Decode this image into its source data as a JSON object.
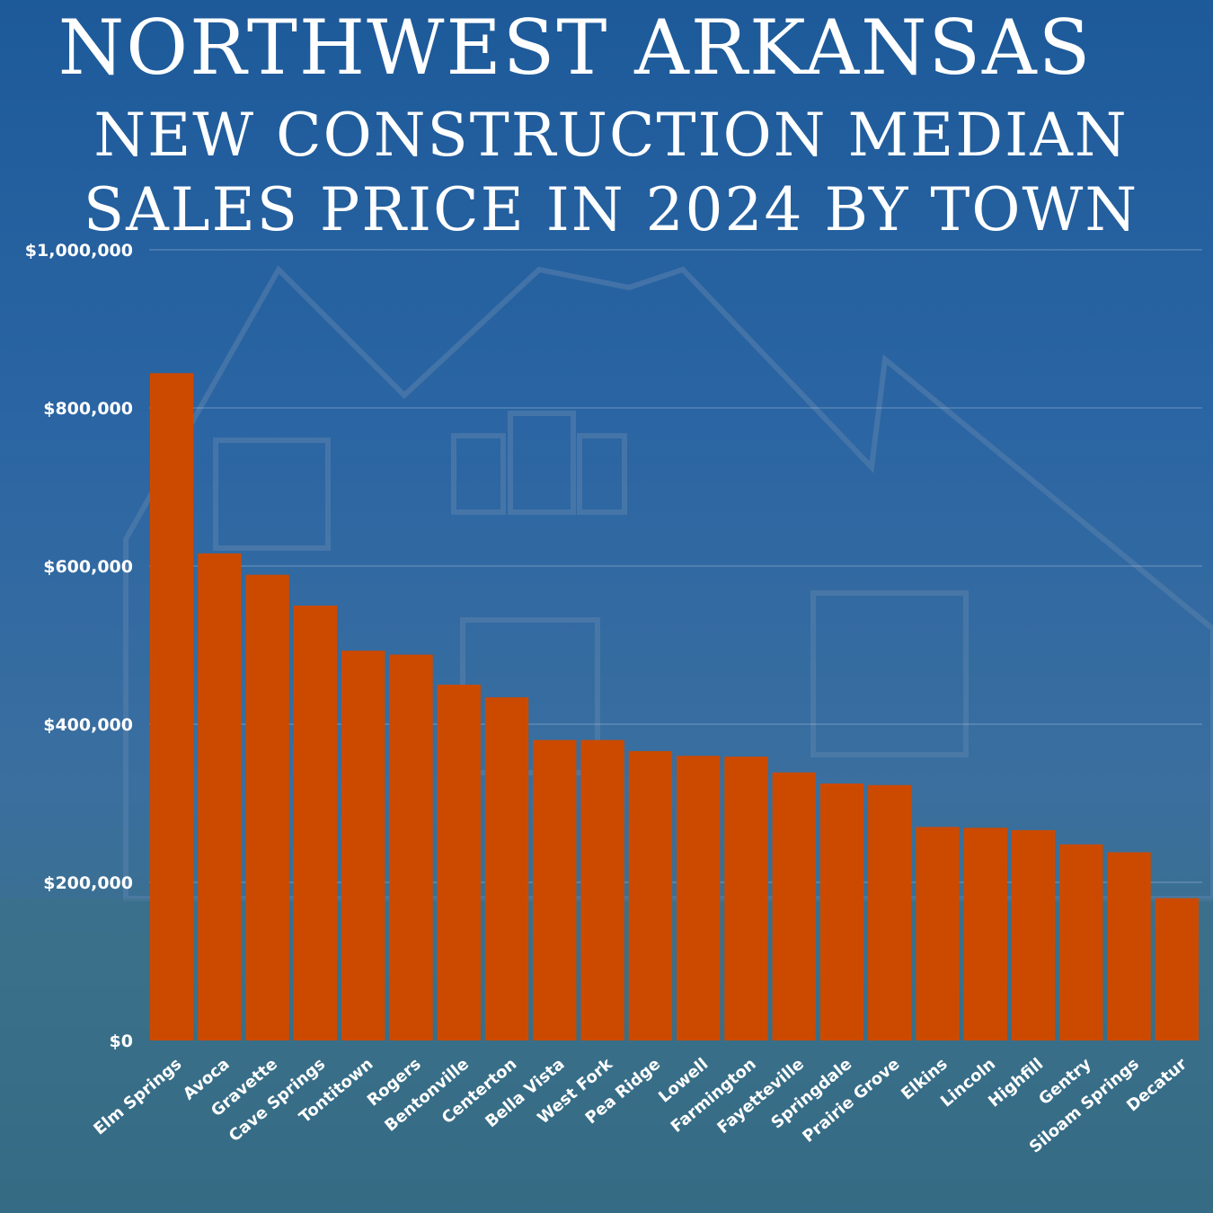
{
  "title": {
    "line1": "NORTHWEST ARKANSAS",
    "line2": "NEW CONSTRUCTION MEDIAN",
    "line3": "SALES PRICE IN 2024 BY TOWN"
  },
  "colors": {
    "bar": "#cc4a00",
    "background": "#2b65a3",
    "text": "#ffffff"
  },
  "chart_data": {
    "type": "bar",
    "title": "Northwest Arkansas New Construction Median Sales Price in 2024 by Town",
    "xlabel": "",
    "ylabel": "",
    "ylim": [
      0,
      1000000
    ],
    "yticks": [
      0,
      200000,
      400000,
      600000,
      800000,
      1000000
    ],
    "ytick_labels": [
      "$0",
      "$200,000",
      "$400,000",
      "$600,000",
      "$800,000",
      "$1,000,000"
    ],
    "grid": true,
    "categories": [
      "Elm Springs",
      "Avoca",
      "Gravette",
      "Cave Springs",
      "Tontitown",
      "Rogers",
      "Bentonville",
      "Centerton",
      "Bella Vista",
      "West Fork",
      "Pea Ridge",
      "Lowell",
      "Farmington",
      "Fayetteville",
      "Springdale",
      "Prairie Grove",
      "Elkins",
      "Lincoln",
      "Highfill",
      "Gentry",
      "Siloam Springs",
      "Decatur"
    ],
    "values": [
      844000,
      616000,
      589000,
      550000,
      493000,
      488000,
      450000,
      434000,
      380000,
      380000,
      366000,
      360000,
      359000,
      339000,
      325000,
      323000,
      270000,
      269000,
      266000,
      248000,
      238000,
      180000
    ]
  }
}
